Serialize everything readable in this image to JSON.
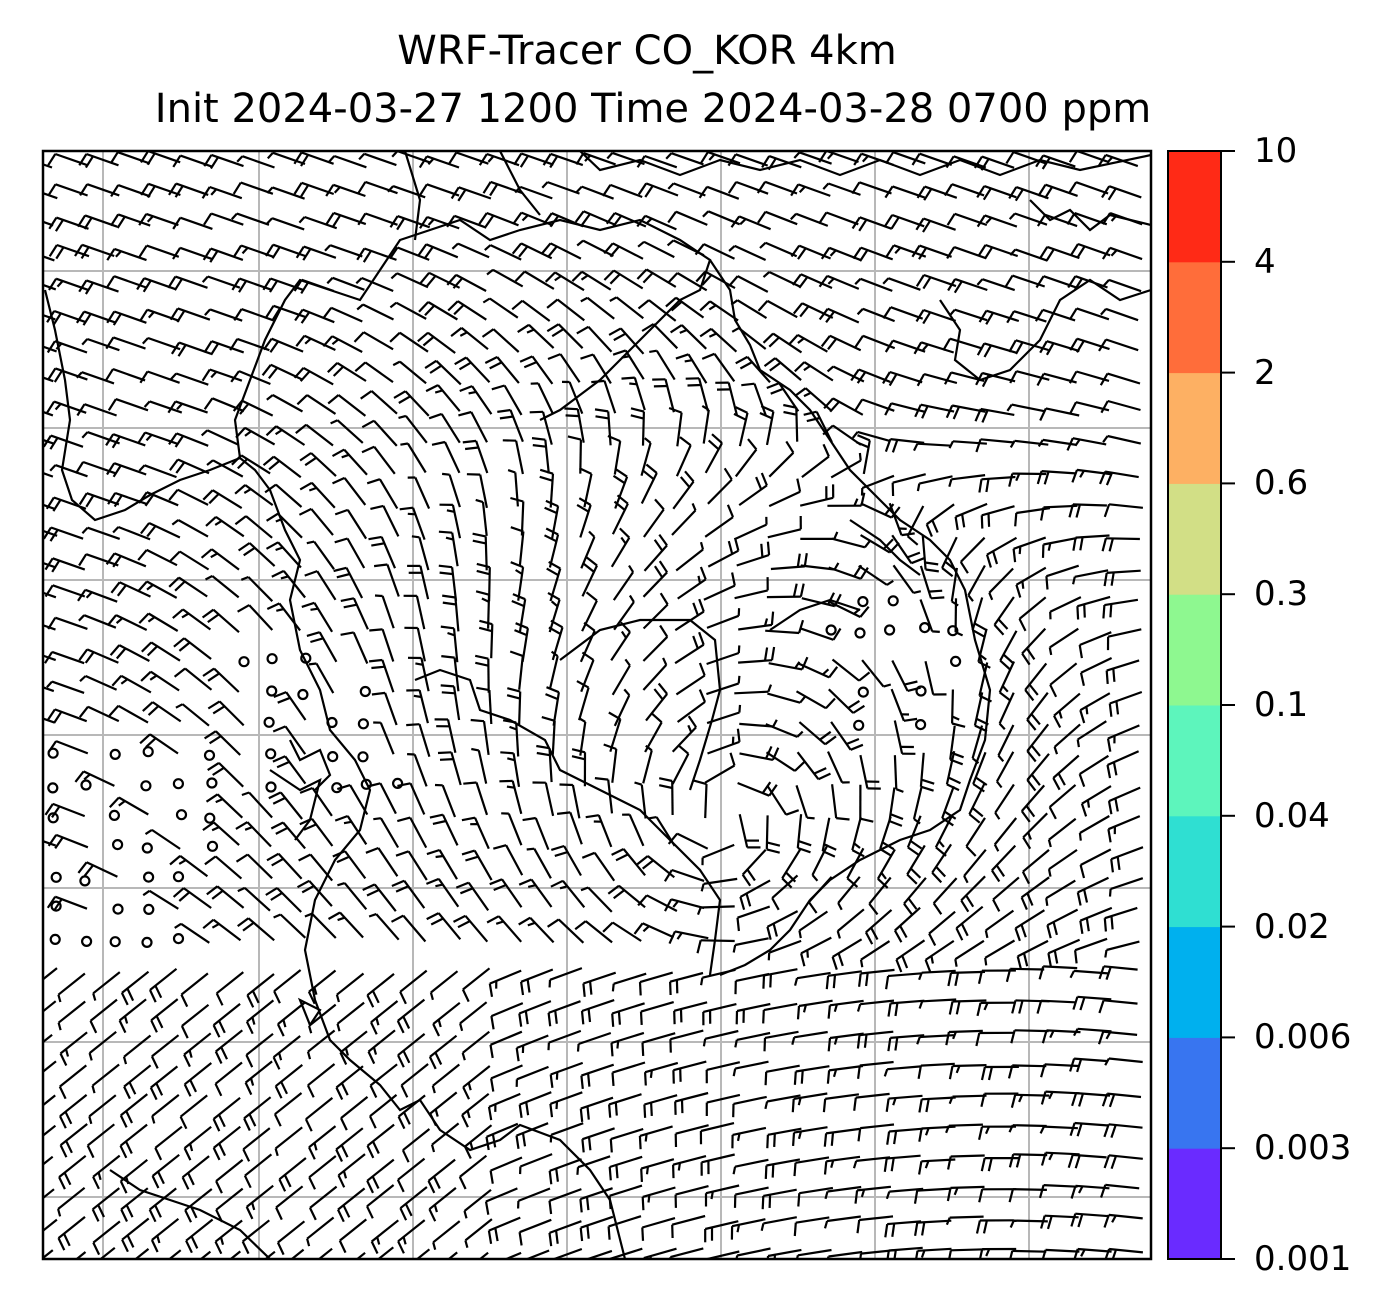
{
  "title": {
    "line1": "WRF-Tracer CO_KOR 4km",
    "line2": "Init 2024-03-27 1200 Time 2024-03-28 0700 ppm"
  },
  "colorbar": {
    "colors": [
      "#6a2bff",
      "#3875f0",
      "#00b0ee",
      "#2fdfd2",
      "#5df5bc",
      "#8ef890",
      "#d2df86",
      "#fdb063",
      "#ff6d3a",
      "#ff2a16"
    ],
    "ticks": [
      "0.001",
      "0.003",
      "0.006",
      "0.02",
      "0.04",
      "0.1",
      "0.3",
      "0.6",
      "2",
      "4",
      "10"
    ]
  },
  "map": {
    "field": "CO tracer (below 0.001 ppm everywhere shown)",
    "overlay": "wind barbs",
    "gridlines": true
  }
}
